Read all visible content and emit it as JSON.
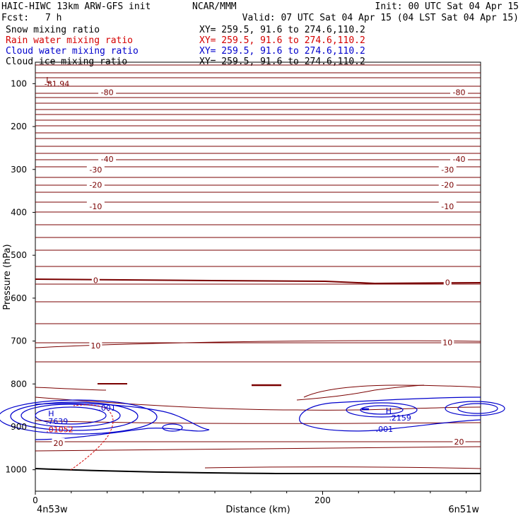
{
  "header": {
    "title": "HAIC-HIWC 13km ARW-GFS init",
    "org": "NCAR/MMM",
    "init": "Init: 00 UTC Sat 04 Apr 15",
    "fcst_label": "Fcst:",
    "fcst_value": "7 h",
    "valid": "Valid: 07 UTC Sat 04 Apr 15 (04 LST Sat 04 Apr 15)"
  },
  "fields": [
    {
      "name": "Snow mixing ratio",
      "xy": "XY= 259.5, 91.6 to 274.6,110.2",
      "color": "#000000"
    },
    {
      "name": "Rain water mixing ratio",
      "xy": "XY= 259.5, 91.6 to 274.6,110.2",
      "color": "#d40000"
    },
    {
      "name": "Cloud water mixing ratio",
      "xy": "XY= 259.5, 91.6 to 274.6,110.2",
      "color": "#0000cc"
    },
    {
      "name": "Cloud ice mixing ratio",
      "xy": "XY= 259.5, 91.6 to 274.6,110.2",
      "color": "#000000"
    }
  ],
  "colors": {
    "temperature": "#7a0000",
    "cloud_water": "#0000cc",
    "rain": "#d40000",
    "ground": "#000000"
  },
  "chart_data": {
    "type": "contour",
    "ylabel": "Pressure (hPa)",
    "xlabel": "Distance (km)",
    "yticks": [
      100,
      200,
      300,
      400,
      500,
      600,
      700,
      800,
      900,
      1000
    ],
    "xticks": [
      0,
      200
    ],
    "xlim": [
      0,
      310
    ],
    "ylim": [
      50,
      1050
    ],
    "endpoints": {
      "left": "4n53w",
      "right": "6n51w"
    },
    "temperature_labels": [
      {
        "text": "-80",
        "x": 50,
        "p": 120
      },
      {
        "text": "-80",
        "x": 295,
        "p": 120
      },
      {
        "text": "-40",
        "x": 50,
        "p": 276
      },
      {
        "text": "-40",
        "x": 295,
        "p": 276
      },
      {
        "text": "-30",
        "x": 42,
        "p": 300
      },
      {
        "text": "-30",
        "x": 287,
        "p": 300
      },
      {
        "text": "-20",
        "x": 42,
        "p": 336
      },
      {
        "text": "-20",
        "x": 287,
        "p": 336
      },
      {
        "text": "-10",
        "x": 42,
        "p": 386
      },
      {
        "text": "-10",
        "x": 287,
        "p": 386
      },
      {
        "text": "0",
        "x": 42,
        "p": 558
      },
      {
        "text": "0",
        "x": 287,
        "p": 563
      },
      {
        "text": "10",
        "x": 42,
        "p": 711
      },
      {
        "text": "10",
        "x": 287,
        "p": 703
      },
      {
        "text": "20",
        "x": 16,
        "p": 938
      },
      {
        "text": "20",
        "x": 295,
        "p": 935
      }
    ],
    "extrema_labels": [
      {
        "text": "L",
        "x": 9,
        "p": 91,
        "color": "temperature"
      },
      {
        "text": "-81.94",
        "x": 15,
        "p": 100,
        "color": "temperature"
      },
      {
        "text": "H",
        "x": 11,
        "p": 869,
        "color": "cloud_water"
      },
      {
        "text": ".7639",
        "x": 15,
        "p": 887,
        "color": "cloud_water"
      },
      {
        "text": ".01052",
        "x": 17,
        "p": 906,
        "color": "rain"
      },
      {
        "text": ".001",
        "x": 50,
        "p": 856,
        "color": "cloud_water"
      },
      {
        "text": "H",
        "x": 246,
        "p": 862,
        "color": "cloud_water"
      },
      {
        "text": ".2159",
        "x": 254,
        "p": 879,
        "color": "cloud_water"
      },
      {
        "text": ".001",
        "x": 243,
        "p": 905,
        "color": "cloud_water"
      }
    ]
  }
}
